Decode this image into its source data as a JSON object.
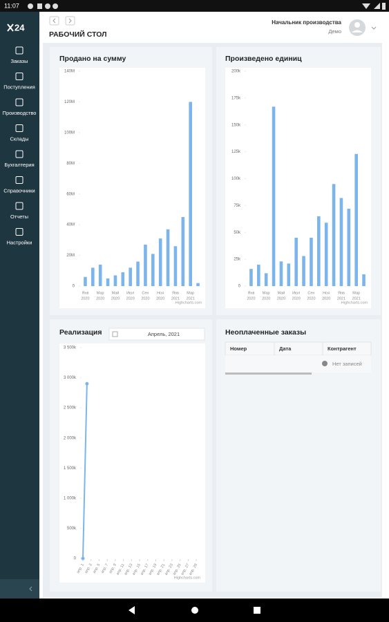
{
  "status_bar": {
    "time": "11:07"
  },
  "sidebar": {
    "logo": "24",
    "menu": [
      "Заказы",
      "Поступления",
      "Производство",
      "Склады",
      "Бухгалтерия",
      "Справочники",
      "Отчеты",
      "Настройки"
    ]
  },
  "header": {
    "title": "РАБОЧИЙ СТОЛ",
    "user": "Начальник производства",
    "role": "Демо"
  },
  "chart_data": [
    {
      "type": "bar",
      "title": "Продано на сумму",
      "categories": [
        [
          "Янв",
          "2020"
        ],
        null,
        [
          "Мар",
          "2020"
        ],
        null,
        [
          "Май",
          "2020"
        ],
        null,
        [
          "Июл",
          "2020"
        ],
        null,
        [
          "Сен",
          "2020"
        ],
        null,
        [
          "Ноя",
          "2020"
        ],
        null,
        [
          "Янв",
          "2021"
        ],
        null,
        [
          "Мар",
          "2021"
        ],
        null
      ],
      "values": [
        6,
        12,
        14,
        5,
        7,
        9,
        12,
        16,
        27,
        21,
        31,
        37,
        26,
        45,
        120,
        2
      ],
      "color": "#7cb5ec",
      "ylim": [
        0,
        140
      ],
      "yticks": [
        0,
        {
          "value": 20,
          "label": "20M"
        },
        {
          "value": 40,
          "label": "40M"
        },
        {
          "value": 60,
          "label": "60M"
        },
        {
          "value": 80,
          "label": "80M"
        },
        {
          "value": 100,
          "label": "100M"
        },
        {
          "value": 120,
          "label": "120M"
        },
        {
          "value": 140,
          "label": "140M"
        }
      ],
      "credits": "Highcharts.com"
    },
    {
      "type": "bar",
      "title": "Произведено единиц",
      "categories": [
        [
          "Янв",
          "2020"
        ],
        null,
        [
          "Мар",
          "2020"
        ],
        null,
        [
          "Май",
          "2020"
        ],
        null,
        [
          "Июл",
          "2020"
        ],
        null,
        [
          "Сен",
          "2020"
        ],
        null,
        [
          "Ноя",
          "2020"
        ],
        null,
        [
          "Янв",
          "2021"
        ],
        null,
        [
          "Мар",
          "2021"
        ],
        null
      ],
      "values": [
        16,
        20,
        12,
        167,
        23,
        21,
        45,
        28,
        45,
        65,
        59,
        95,
        82,
        72,
        123,
        11
      ],
      "color": "#7cb5ec",
      "ylim": [
        0,
        200
      ],
      "yticks": [
        0,
        {
          "value": 25,
          "label": "25k"
        },
        {
          "value": 50,
          "label": "50k"
        },
        {
          "value": 75,
          "label": "75k"
        },
        {
          "value": 100,
          "label": "100k"
        },
        {
          "value": 125,
          "label": "125k"
        },
        {
          "value": 150,
          "label": "150k"
        },
        {
          "value": 175,
          "label": "175k"
        },
        {
          "value": 200,
          "label": "200k"
        }
      ],
      "credits": "Highcharts.com"
    },
    {
      "type": "line",
      "title": "Реализация",
      "x": [
        1,
        2
      ],
      "values": [
        0,
        2900
      ],
      "color": "#7cb5ec",
      "xlim": [
        1,
        30
      ],
      "xticks": [
        {
          "value": 1,
          "label": "апр. 1"
        },
        {
          "value": 3,
          "label": "апр. 3"
        },
        {
          "value": 5,
          "label": "апр. 5"
        },
        {
          "value": 7,
          "label": "апр. 7"
        },
        {
          "value": 9,
          "label": "апр. 9"
        },
        {
          "value": 11,
          "label": "апр. 11"
        },
        {
          "value": 13,
          "label": "апр. 13"
        },
        {
          "value": 15,
          "label": "апр. 15"
        },
        {
          "value": 17,
          "label": "апр. 17"
        },
        {
          "value": 19,
          "label": "апр. 19"
        },
        {
          "value": 21,
          "label": "апр. 21"
        },
        {
          "value": 23,
          "label": "апр. 23"
        },
        {
          "value": 25,
          "label": "апр. 25"
        },
        {
          "value": 27,
          "label": "апр. 27"
        },
        {
          "value": 29,
          "label": "апр. 29"
        }
      ],
      "ylim": [
        0,
        3500
      ],
      "yticks": [
        0,
        {
          "value": 500,
          "label": "500k"
        },
        {
          "value": 1000,
          "label": "1 000k"
        },
        {
          "value": 1500,
          "label": "1 500k"
        },
        {
          "value": 2000,
          "label": "2 000k"
        },
        {
          "value": 2500,
          "label": "2 500k"
        },
        {
          "value": 3000,
          "label": "3 000k"
        },
        {
          "value": 3500,
          "label": "3 500k"
        }
      ],
      "credits": "Highcharts.com"
    }
  ],
  "date_picker": "Апрель, 2021",
  "table": {
    "title": "Неоплаченные заказы",
    "columns": [
      "Номер",
      "Дата",
      "Контрагент"
    ],
    "empty": "Нет записей"
  }
}
